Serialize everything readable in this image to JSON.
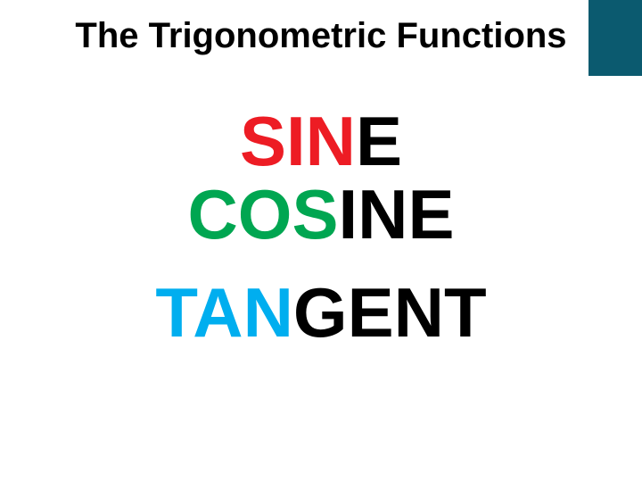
{
  "title": {
    "text": "The Trigonometric Functions",
    "fontsize": 40,
    "color": "#000000"
  },
  "accent": {
    "color": "#0b5a6f"
  },
  "words": [
    {
      "prefix": "SIN",
      "suffix": "E",
      "prefix_color": "#ed1c24",
      "suffix_color": "#000000",
      "fontsize": 78
    },
    {
      "prefix": "COS",
      "suffix": "INE",
      "prefix_color": "#00a651",
      "suffix_color": "#000000",
      "fontsize": 78
    },
    {
      "prefix": "TAN",
      "suffix": "GENT",
      "prefix_color": "#00aeef",
      "suffix_color": "#000000",
      "fontsize": 78
    }
  ]
}
